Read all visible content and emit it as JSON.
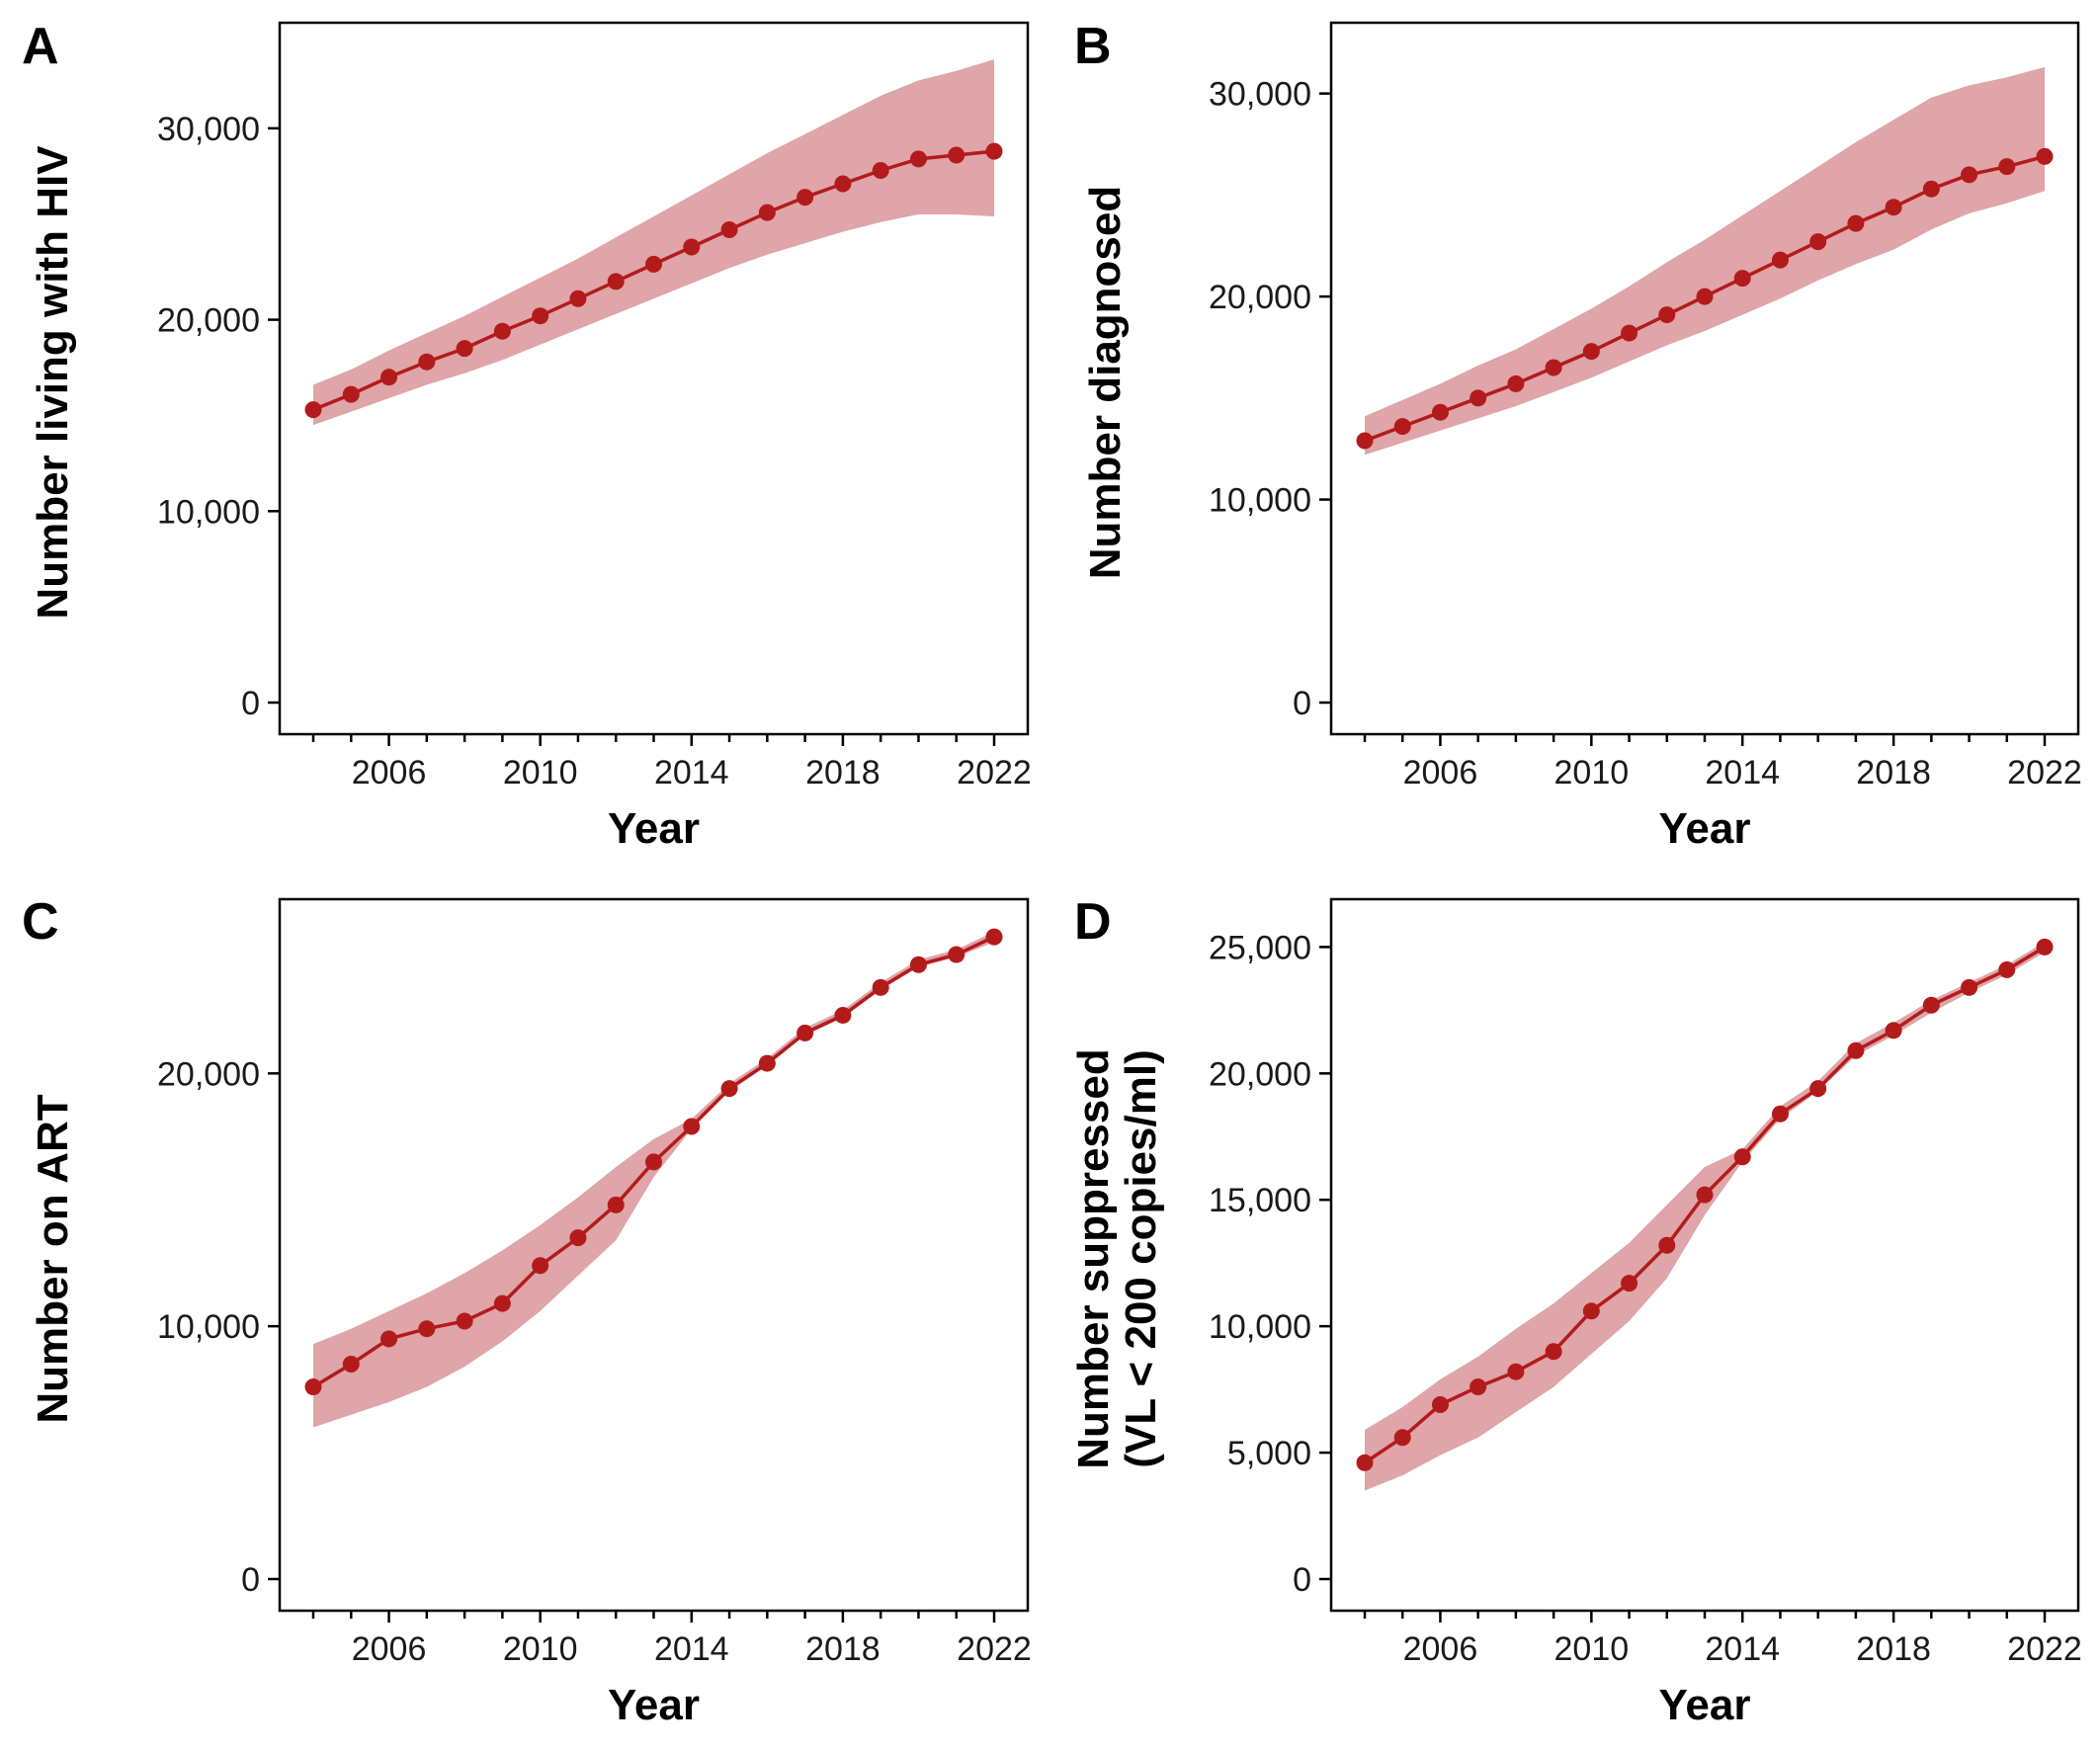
{
  "colors": {
    "line": "#b31b1b",
    "band": "#dfa5a8"
  },
  "chart_data": [
    {
      "panel": "A",
      "type": "line",
      "xlabel": "Year",
      "ylabel": [
        "Number living with HIV"
      ],
      "x": [
        2004,
        2005,
        2006,
        2007,
        2008,
        2009,
        2010,
        2011,
        2012,
        2013,
        2014,
        2015,
        2016,
        2017,
        2018,
        2019,
        2020,
        2021,
        2022
      ],
      "values": [
        15300,
        16100,
        17000,
        17800,
        18500,
        19400,
        20200,
        21100,
        22000,
        22900,
        23800,
        24700,
        25600,
        26400,
        27100,
        27800,
        28400,
        28600,
        28800
      ],
      "lower": [
        14500,
        15200,
        15900,
        16600,
        17200,
        17900,
        18700,
        19500,
        20300,
        21100,
        21900,
        22700,
        23400,
        24000,
        24600,
        25100,
        25500,
        25500,
        25400
      ],
      "upper": [
        16600,
        17400,
        18400,
        19300,
        20200,
        21200,
        22200,
        23200,
        24300,
        25400,
        26500,
        27600,
        28700,
        29700,
        30700,
        31700,
        32500,
        33000,
        33600
      ],
      "ylim": [
        0,
        35000
      ],
      "yticks": [
        0,
        10000,
        20000,
        30000
      ],
      "ytick_labels": [
        "0",
        "10,000",
        "20,000",
        "30,000"
      ],
      "xticks": [
        2006,
        2010,
        2014,
        2018,
        2022
      ],
      "xtick_labels": [
        "2006",
        "2010",
        "2014",
        "2018",
        "2022"
      ]
    },
    {
      "panel": "B",
      "type": "line",
      "xlabel": "Year",
      "ylabel": [
        "Number diagnosed"
      ],
      "x": [
        2004,
        2005,
        2006,
        2007,
        2008,
        2009,
        2010,
        2011,
        2012,
        2013,
        2014,
        2015,
        2016,
        2017,
        2018,
        2019,
        2020,
        2021,
        2022
      ],
      "values": [
        12900,
        13600,
        14300,
        15000,
        15700,
        16500,
        17300,
        18200,
        19100,
        20000,
        20900,
        21800,
        22700,
        23600,
        24400,
        25300,
        26000,
        26400,
        26900
      ],
      "lower": [
        12200,
        12800,
        13400,
        14000,
        14600,
        15300,
        16000,
        16800,
        17600,
        18300,
        19100,
        19900,
        20800,
        21600,
        22300,
        23300,
        24100,
        24600,
        25200
      ],
      "upper": [
        14100,
        14900,
        15700,
        16600,
        17400,
        18400,
        19400,
        20500,
        21700,
        22800,
        24000,
        25200,
        26400,
        27600,
        28700,
        29800,
        30400,
        30800,
        31300
      ],
      "ylim": [
        0,
        33000
      ],
      "yticks": [
        0,
        10000,
        20000,
        30000
      ],
      "ytick_labels": [
        "0",
        "10,000",
        "20,000",
        "30,000"
      ],
      "xticks": [
        2006,
        2010,
        2014,
        2018,
        2022
      ],
      "xtick_labels": [
        "2006",
        "2010",
        "2014",
        "2018",
        "2022"
      ]
    },
    {
      "panel": "C",
      "type": "line",
      "xlabel": "Year",
      "ylabel": [
        "Number on ART"
      ],
      "x": [
        2004,
        2005,
        2006,
        2007,
        2008,
        2009,
        2010,
        2011,
        2012,
        2013,
        2014,
        2015,
        2016,
        2017,
        2018,
        2019,
        2020,
        2021,
        2022
      ],
      "values": [
        7600,
        8500,
        9500,
        9900,
        10200,
        10900,
        12400,
        13500,
        14800,
        16500,
        17900,
        19400,
        20400,
        21600,
        22300,
        23400,
        24300,
        24700,
        25400
      ],
      "lower": [
        6000,
        6500,
        7000,
        7600,
        8400,
        9400,
        10600,
        12000,
        13400,
        15900,
        17800,
        19300,
        20300,
        21500,
        22200,
        23300,
        24200,
        24600,
        25200
      ],
      "upper": [
        9300,
        9900,
        10600,
        11300,
        12100,
        13000,
        14000,
        15100,
        16300,
        17400,
        18200,
        19600,
        20600,
        21800,
        22500,
        23600,
        24500,
        24900,
        25600
      ],
      "ylim": [
        0,
        26500
      ],
      "yticks": [
        0,
        10000,
        20000
      ],
      "ytick_labels": [
        "0",
        "10,000",
        "20,000"
      ],
      "xticks": [
        2006,
        2010,
        2014,
        2018,
        2022
      ],
      "xtick_labels": [
        "2006",
        "2010",
        "2014",
        "2018",
        "2022"
      ]
    },
    {
      "panel": "D",
      "type": "line",
      "xlabel": "Year",
      "ylabel": [
        "Number suppressed",
        "(VL < 200 copies/ml)"
      ],
      "x": [
        2004,
        2005,
        2006,
        2007,
        2008,
        2009,
        2010,
        2011,
        2012,
        2013,
        2014,
        2015,
        2016,
        2017,
        2018,
        2019,
        2020,
        2021,
        2022
      ],
      "values": [
        4600,
        5600,
        6900,
        7600,
        8200,
        9000,
        10600,
        11700,
        13200,
        15200,
        16700,
        18400,
        19400,
        20900,
        21700,
        22700,
        23400,
        24100,
        25000
      ],
      "lower": [
        3500,
        4100,
        4900,
        5600,
        6600,
        7600,
        8900,
        10200,
        11900,
        14400,
        16500,
        18200,
        19300,
        20700,
        21500,
        22400,
        23200,
        23900,
        24800
      ],
      "upper": [
        5900,
        6800,
        7900,
        8800,
        9900,
        10900,
        12100,
        13300,
        14800,
        16300,
        17000,
        18700,
        19700,
        21200,
        22000,
        22900,
        23600,
        24300,
        25200
      ],
      "ylim": [
        0,
        26500
      ],
      "yticks": [
        0,
        5000,
        10000,
        15000,
        20000,
        25000
      ],
      "ytick_labels": [
        "0",
        "5,000",
        "10,000",
        "15,000",
        "20,000",
        "25,000"
      ],
      "xticks": [
        2006,
        2010,
        2014,
        2018,
        2022
      ],
      "xtick_labels": [
        "2006",
        "2010",
        "2014",
        "2018",
        "2022"
      ]
    }
  ]
}
